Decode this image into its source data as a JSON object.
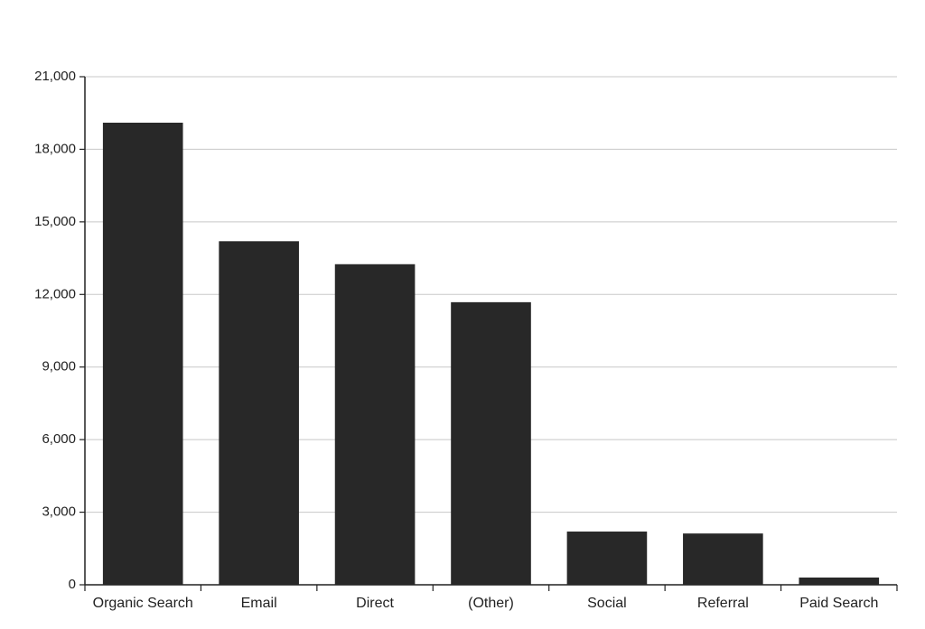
{
  "chart_data": {
    "type": "bar",
    "categories": [
      "Organic Search",
      "Email",
      "Direct",
      "(Other)",
      "Social",
      "Referral",
      "Paid Search"
    ],
    "values": [
      19100,
      14200,
      13250,
      11680,
      2200,
      2120,
      300
    ],
    "y_ticks": [
      "0",
      "3,000",
      "6,000",
      "9,000",
      "12,000",
      "15,000",
      "18,000",
      "21,000"
    ],
    "ylim": [
      0,
      21000
    ],
    "y_step": 3000,
    "grid": true,
    "bar_color": "#282828"
  }
}
